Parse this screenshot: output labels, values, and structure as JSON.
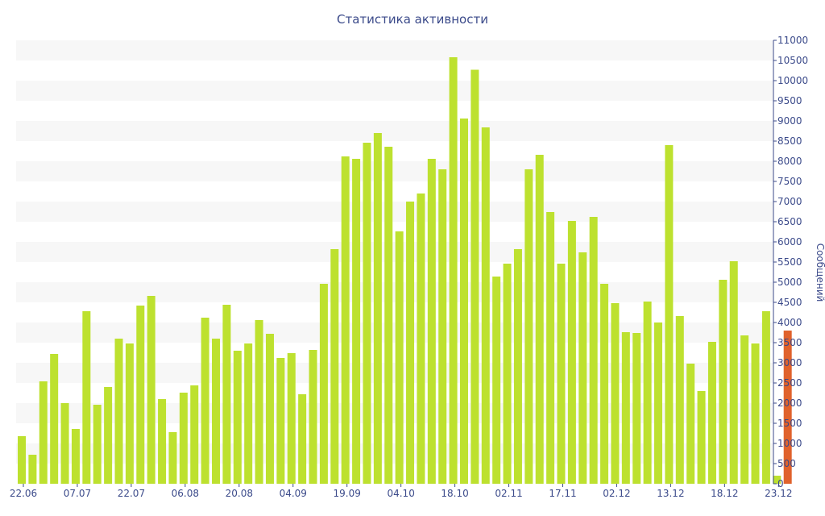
{
  "chart_data": {
    "type": "bar",
    "title": "Статистика активности",
    "ylabel": "Сообщений",
    "ylim": [
      0,
      11000
    ],
    "ytick_step": 500,
    "grid": "alternating-bands",
    "colors": {
      "bar": "#bde12f",
      "highlight": "#e0622c",
      "band": "#f7f7f7",
      "text": "#3b4a8a"
    },
    "x_tick_labels": [
      {
        "index": 0,
        "label": "22.06"
      },
      {
        "index": 5,
        "label": "07.07"
      },
      {
        "index": 10,
        "label": "22.07"
      },
      {
        "index": 15,
        "label": "06.08"
      },
      {
        "index": 20,
        "label": "20.08"
      },
      {
        "index": 25,
        "label": "04.09"
      },
      {
        "index": 30,
        "label": "19.09"
      },
      {
        "index": 35,
        "label": "04.10"
      },
      {
        "index": 40,
        "label": "18.10"
      },
      {
        "index": 45,
        "label": "02.11"
      },
      {
        "index": 50,
        "label": "17.11"
      },
      {
        "index": 55,
        "label": "02.12"
      },
      {
        "index": 60,
        "label": "13.12"
      },
      {
        "index": 65,
        "label": "18.12"
      },
      {
        "index": 70,
        "label": "23.12"
      }
    ],
    "values": [
      1180,
      720,
      2540,
      3220,
      2000,
      1360,
      4280,
      1960,
      2400,
      3600,
      3480,
      4420,
      4660,
      2100,
      1280,
      2260,
      2440,
      4120,
      3600,
      4440,
      3300,
      3480,
      4060,
      3720,
      3120,
      3240,
      2220,
      3320,
      4960,
      5820,
      8120,
      8060,
      8460,
      8700,
      8360,
      6260,
      7000,
      7200,
      8060,
      7800,
      10580,
      9060,
      10270,
      8840,
      5140,
      5460,
      5820,
      7800,
      8160,
      6740,
      5460,
      6520,
      5740,
      6620,
      4960,
      4480,
      3760,
      3740,
      4520,
      4000,
      8400,
      4160,
      2980,
      2300,
      3520,
      5060,
      5520,
      3680,
      3480,
      4280,
      3800
    ],
    "highlight_index": 70
  }
}
